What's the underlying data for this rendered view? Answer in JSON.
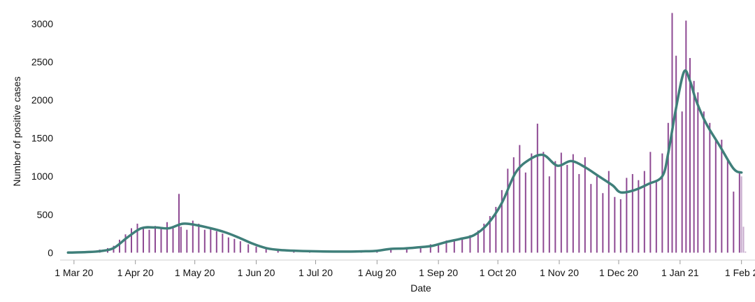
{
  "chart_data": {
    "type": "bar",
    "xlabel": "Date",
    "ylabel": "Number of positive cases",
    "x_range": [
      "2020-02-23",
      "2021-02-05"
    ],
    "ylim": [
      -60,
      3200
    ],
    "grid": false,
    "legend": "none",
    "x_ticks": [
      {
        "date": "2020-03-01",
        "label": "1 Mar 20"
      },
      {
        "date": "2020-04-01",
        "label": "1 Apr 20"
      },
      {
        "date": "2020-05-01",
        "label": "1 May 20"
      },
      {
        "date": "2020-06-01",
        "label": "1 Jun 20"
      },
      {
        "date": "2020-07-01",
        "label": "1 Jul 20"
      },
      {
        "date": "2020-08-01",
        "label": "1 Aug 20"
      },
      {
        "date": "2020-09-01",
        "label": "1 Sep 20"
      },
      {
        "date": "2020-10-01",
        "label": "1 Oct 20"
      },
      {
        "date": "2020-11-01",
        "label": "1 Nov 20"
      },
      {
        "date": "2020-12-01",
        "label": "1 Dec 20"
      },
      {
        "date": "2021-01-01",
        "label": "1 Jan 21"
      },
      {
        "date": "2021-02-01",
        "label": "1 Feb 2"
      }
    ],
    "y_ticks": [
      0,
      500,
      1000,
      1500,
      2000,
      2500,
      3000
    ],
    "colors": {
      "bars": "#8e4a93",
      "recent_bars": "#c6a9cc",
      "line": "#3f7f7a"
    },
    "series": [
      {
        "type": "bar",
        "color_key": "bars",
        "points": [
          [
            "2020-02-27",
            2
          ],
          [
            "2020-03-03",
            6
          ],
          [
            "2020-03-07",
            10
          ],
          [
            "2020-03-10",
            20
          ],
          [
            "2020-03-14",
            40
          ],
          [
            "2020-03-18",
            60
          ],
          [
            "2020-03-21",
            90
          ],
          [
            "2020-03-24",
            170
          ],
          [
            "2020-03-27",
            240
          ],
          [
            "2020-03-30",
            320
          ],
          [
            "2020-04-02",
            380
          ],
          [
            "2020-04-05",
            330
          ],
          [
            "2020-04-08",
            300
          ],
          [
            "2020-04-11",
            350
          ],
          [
            "2020-04-14",
            320
          ],
          [
            "2020-04-17",
            400
          ],
          [
            "2020-04-20",
            330
          ],
          [
            "2020-04-23",
            770
          ],
          [
            "2020-04-24",
            340
          ],
          [
            "2020-04-27",
            300
          ],
          [
            "2020-04-30",
            420
          ],
          [
            "2020-05-03",
            380
          ],
          [
            "2020-05-06",
            300
          ],
          [
            "2020-05-09",
            320
          ],
          [
            "2020-05-12",
            280
          ],
          [
            "2020-05-15",
            250
          ],
          [
            "2020-05-18",
            200
          ],
          [
            "2020-05-21",
            180
          ],
          [
            "2020-05-24",
            150
          ],
          [
            "2020-05-28",
            110
          ],
          [
            "2020-06-01",
            80
          ],
          [
            "2020-06-06",
            50
          ],
          [
            "2020-06-12",
            35
          ],
          [
            "2020-06-20",
            25
          ],
          [
            "2020-06-28",
            18
          ],
          [
            "2020-07-06",
            15
          ],
          [
            "2020-07-15",
            14
          ],
          [
            "2020-07-24",
            18
          ],
          [
            "2020-08-01",
            25
          ],
          [
            "2020-08-08",
            55
          ],
          [
            "2020-08-16",
            60
          ],
          [
            "2020-08-23",
            70
          ],
          [
            "2020-08-28",
            110
          ],
          [
            "2020-09-01",
            95
          ],
          [
            "2020-09-05",
            160
          ],
          [
            "2020-09-09",
            170
          ],
          [
            "2020-09-13",
            200
          ],
          [
            "2020-09-17",
            230
          ],
          [
            "2020-09-21",
            290
          ],
          [
            "2020-09-24",
            380
          ],
          [
            "2020-09-27",
            480
          ],
          [
            "2020-09-30",
            600
          ],
          [
            "2020-10-03",
            820
          ],
          [
            "2020-10-06",
            1100
          ],
          [
            "2020-10-09",
            1250
          ],
          [
            "2020-10-12",
            1410
          ],
          [
            "2020-10-15",
            1050
          ],
          [
            "2020-10-18",
            1300
          ],
          [
            "2020-10-21",
            1690
          ],
          [
            "2020-10-24",
            1320
          ],
          [
            "2020-10-27",
            1000
          ],
          [
            "2020-10-30",
            1200
          ],
          [
            "2020-11-02",
            1310
          ],
          [
            "2020-11-05",
            1150
          ],
          [
            "2020-11-08",
            1290
          ],
          [
            "2020-11-11",
            1030
          ],
          [
            "2020-11-14",
            1250
          ],
          [
            "2020-11-17",
            900
          ],
          [
            "2020-11-20",
            1000
          ],
          [
            "2020-11-23",
            780
          ],
          [
            "2020-11-26",
            1070
          ],
          [
            "2020-11-29",
            730
          ],
          [
            "2020-12-02",
            700
          ],
          [
            "2020-12-05",
            980
          ],
          [
            "2020-12-08",
            1030
          ],
          [
            "2020-12-11",
            950
          ],
          [
            "2020-12-14",
            1070
          ],
          [
            "2020-12-17",
            1320
          ],
          [
            "2020-12-20",
            950
          ],
          [
            "2020-12-23",
            1300
          ],
          [
            "2020-12-26",
            1700
          ],
          [
            "2020-12-28",
            3140
          ],
          [
            "2020-12-30",
            2580
          ],
          [
            "2021-01-02",
            1850
          ],
          [
            "2021-01-04",
            3040
          ],
          [
            "2021-01-06",
            2550
          ],
          [
            "2021-01-08",
            2250
          ],
          [
            "2021-01-10",
            2100
          ],
          [
            "2021-01-13",
            1850
          ],
          [
            "2021-01-16",
            1700
          ],
          [
            "2021-01-19",
            1500
          ],
          [
            "2021-01-22",
            1480
          ],
          [
            "2021-01-25",
            1230
          ],
          [
            "2021-01-28",
            800
          ],
          [
            "2021-01-31",
            1050
          ]
        ]
      },
      {
        "type": "bar",
        "color_key": "recent_bars",
        "points": [
          [
            "2021-02-01",
            1000
          ],
          [
            "2021-02-02",
            340
          ],
          [
            "2021-02-03",
            15
          ]
        ]
      },
      {
        "type": "line",
        "color_key": "line",
        "points": [
          [
            "2020-02-27",
            1
          ],
          [
            "2020-03-07",
            8
          ],
          [
            "2020-03-14",
            20
          ],
          [
            "2020-03-21",
            60
          ],
          [
            "2020-03-28",
            200
          ],
          [
            "2020-04-04",
            320
          ],
          [
            "2020-04-11",
            330
          ],
          [
            "2020-04-18",
            320
          ],
          [
            "2020-04-25",
            380
          ],
          [
            "2020-05-02",
            360
          ],
          [
            "2020-05-09",
            320
          ],
          [
            "2020-05-16",
            270
          ],
          [
            "2020-05-23",
            200
          ],
          [
            "2020-05-30",
            120
          ],
          [
            "2020-06-06",
            60
          ],
          [
            "2020-06-13",
            35
          ],
          [
            "2020-06-27",
            20
          ],
          [
            "2020-07-11",
            14
          ],
          [
            "2020-07-25",
            18
          ],
          [
            "2020-08-01",
            25
          ],
          [
            "2020-08-08",
            50
          ],
          [
            "2020-08-15",
            55
          ],
          [
            "2020-08-22",
            70
          ],
          [
            "2020-08-29",
            90
          ],
          [
            "2020-09-05",
            140
          ],
          [
            "2020-09-12",
            180
          ],
          [
            "2020-09-19",
            230
          ],
          [
            "2020-09-26",
            380
          ],
          [
            "2020-10-03",
            650
          ],
          [
            "2020-10-10",
            1050
          ],
          [
            "2020-10-17",
            1220
          ],
          [
            "2020-10-24",
            1280
          ],
          [
            "2020-10-31",
            1140
          ],
          [
            "2020-11-07",
            1200
          ],
          [
            "2020-11-14",
            1120
          ],
          [
            "2020-11-21",
            1000
          ],
          [
            "2020-11-28",
            880
          ],
          [
            "2020-12-02",
            790
          ],
          [
            "2020-12-09",
            820
          ],
          [
            "2020-12-16",
            900
          ],
          [
            "2020-12-23",
            1000
          ],
          [
            "2020-12-26",
            1300
          ],
          [
            "2020-12-30",
            1900
          ],
          [
            "2021-01-03",
            2370
          ],
          [
            "2021-01-06",
            2250
          ],
          [
            "2021-01-09",
            2000
          ],
          [
            "2021-01-14",
            1700
          ],
          [
            "2021-01-21",
            1400
          ],
          [
            "2021-01-28",
            1100
          ],
          [
            "2021-02-01",
            1050
          ]
        ]
      }
    ]
  }
}
